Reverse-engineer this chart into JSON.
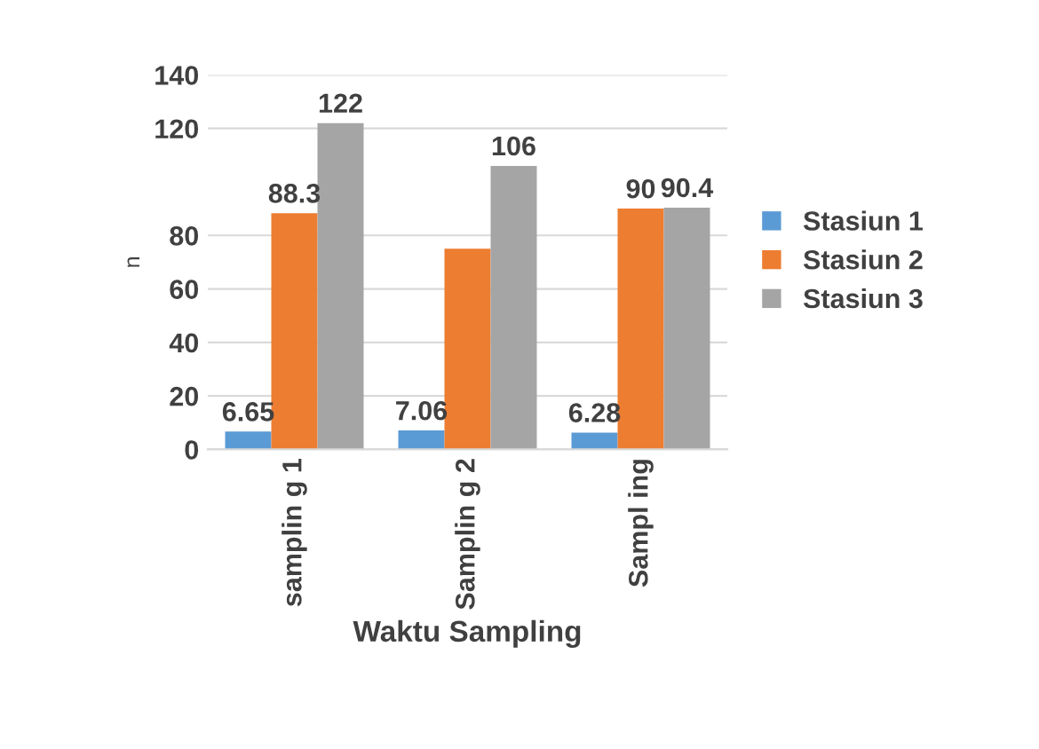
{
  "chart_data": {
    "type": "bar",
    "xlabel": "Waktu Sampling",
    "ylabel": "n",
    "categories": [
      "samplin g 1",
      "Samplin g 2",
      "Sampl ing"
    ],
    "series": [
      {
        "name": "Stasiun 1",
        "color": "#5b9bd5",
        "values": [
          6.65,
          7.06,
          6.28
        ],
        "value_labels": [
          "6.65",
          "7.06",
          "6.28"
        ]
      },
      {
        "name": "Stasiun 2",
        "color": "#ed7d31",
        "values": [
          88.3,
          75,
          90
        ],
        "value_labels": [
          "88.3",
          null,
          "90"
        ]
      },
      {
        "name": "Stasiun 3",
        "color": "#a5a5a5",
        "values": [
          122,
          106,
          90.4
        ],
        "value_labels": [
          "122",
          "106",
          "90.4"
        ]
      }
    ],
    "ylim": [
      0,
      140
    ],
    "yticks": [
      0,
      20,
      40,
      60,
      80,
      120,
      140
    ],
    "grid": "y",
    "legend": "right"
  }
}
